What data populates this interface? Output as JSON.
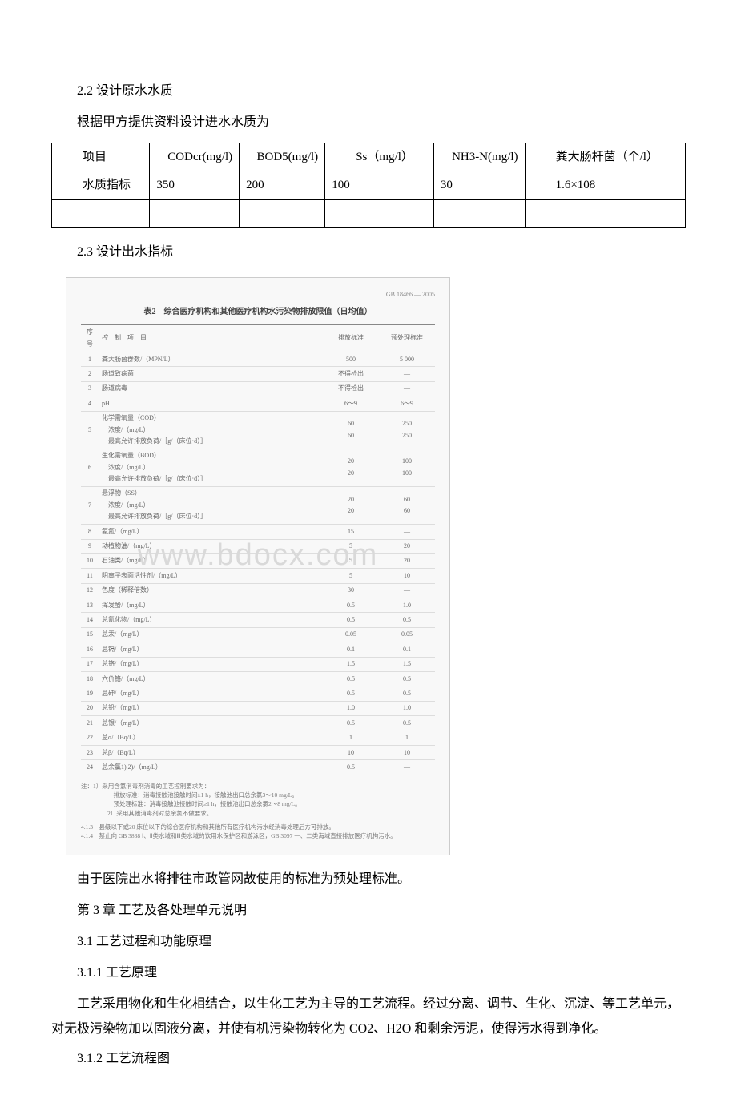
{
  "section22": {
    "heading": "2.2 设计原水水质",
    "intro": "根据甲方提供资料设计进水水质为"
  },
  "table1": {
    "headers": [
      "项目",
      "CODcr(mg/l)",
      "BOD5(mg/l)",
      "Ss（mg/l）",
      "NH3-N(mg/l)",
      "粪大肠杆菌（个/l）"
    ],
    "row_label": "水质指标",
    "values": [
      "350",
      "200",
      "100",
      "30",
      "1.6×108"
    ]
  },
  "section23": {
    "heading": "2.3 设计出水指标"
  },
  "figure": {
    "topright": "GB 18466 — 2005",
    "title": "表2　综合医疗机构和其他医疗机构水污染物排放限值（日均值）",
    "columns": [
      "序号",
      "控　制　项　目",
      "排放标准",
      "预处理标准"
    ],
    "rows": [
      {
        "n": "1",
        "item": "粪大肠菌群数/（MPN/L）",
        "a": "500",
        "b": "5 000"
      },
      {
        "n": "2",
        "item": "肠道致病菌",
        "a": "不得检出",
        "b": "—"
      },
      {
        "n": "3",
        "item": "肠道病毒",
        "a": "不得检出",
        "b": "—"
      },
      {
        "n": "4",
        "item": "pH",
        "a": "6～9",
        "b": "6～9"
      },
      {
        "n": "5",
        "item": "化学需氧量（COD）\n　浓度/（mg/L）\n　最高允许排放负荷/［g/（床位·d）］",
        "a": "60\n60",
        "b": "250\n250"
      },
      {
        "n": "6",
        "item": "生化需氧量（BOD）\n　浓度/（mg/L）\n　最高允许排放负荷/［g/（床位·d）］",
        "a": "20\n20",
        "b": "100\n100"
      },
      {
        "n": "7",
        "item": "悬浮物（SS）\n　浓度/（mg/L）\n　最高允许排放负荷/［g/（床位·d）］",
        "a": "20\n20",
        "b": "60\n60"
      },
      {
        "n": "8",
        "item": "氨氮/（mg/L）",
        "a": "15",
        "b": "—"
      },
      {
        "n": "9",
        "item": "动植物油/（mg/L）",
        "a": "5",
        "b": "20"
      },
      {
        "n": "10",
        "item": "石油类/（mg/L）",
        "a": "5",
        "b": "20"
      },
      {
        "n": "11",
        "item": "阴离子表面活性剂/（mg/L）",
        "a": "5",
        "b": "10"
      },
      {
        "n": "12",
        "item": "色度（稀释倍数）",
        "a": "30",
        "b": "—"
      },
      {
        "n": "13",
        "item": "挥发酚/（mg/L）",
        "a": "0.5",
        "b": "1.0"
      },
      {
        "n": "14",
        "item": "总氰化物/（mg/L）",
        "a": "0.5",
        "b": "0.5"
      },
      {
        "n": "15",
        "item": "总汞/（mg/L）",
        "a": "0.05",
        "b": "0.05"
      },
      {
        "n": "16",
        "item": "总镉/（mg/L）",
        "a": "0.1",
        "b": "0.1"
      },
      {
        "n": "17",
        "item": "总铬/（mg/L）",
        "a": "1.5",
        "b": "1.5"
      },
      {
        "n": "18",
        "item": "六价铬/（mg/L）",
        "a": "0.5",
        "b": "0.5"
      },
      {
        "n": "19",
        "item": "总砷/（mg/L）",
        "a": "0.5",
        "b": "0.5"
      },
      {
        "n": "20",
        "item": "总铅/（mg/L）",
        "a": "1.0",
        "b": "1.0"
      },
      {
        "n": "21",
        "item": "总银/（mg/L）",
        "a": "0.5",
        "b": "0.5"
      },
      {
        "n": "22",
        "item": "总α/（Bq/L）",
        "a": "1",
        "b": "1"
      },
      {
        "n": "23",
        "item": "总β/（Bq/L）",
        "a": "10",
        "b": "10"
      },
      {
        "n": "24",
        "item": "总余氯1),2)/（mg/L）",
        "a": "0.5",
        "b": "—"
      }
    ],
    "note1": "注：1）采用含氯消毒剂消毒的工艺控制要求为：\n　　　排放标准：消毒接触池接触时间≥1 h，接触池出口总余氯3～10 mg/L。\n　　　预处理标准：消毒接触池接触时间≥1 h，接触池出口总余氯2～8 mg/L。\n　　2）采用其他消毒剂对总余氯不做要求。",
    "note2": "4.1.3　县级以下或20 床位以下的综合医疗机构和其他所有医疗机构污水经消毒处理后方可排放。\n4.1.4　禁止向 GB 3838 Ⅰ、Ⅱ类水域和Ⅲ类水域的饮用水保护区和游泳区，GB 3097 一、二类海域直接排放医疗机构污水。"
  },
  "post_figure": "由于医院出水将排往市政管网故使用的标准为预处理标准。",
  "chapter3": "第 3 章 工艺及各处理单元说明",
  "section31": "3.1 工艺过程和功能原理",
  "section311": "3.1.1 工艺原理",
  "para311": "工艺采用物化和生化相结合，以生化工艺为主导的工艺流程。经过分离、调节、生化、沉淀、等工艺单元，对无极污染物加以固液分离，并使有机污染物转化为 CO2、H2O 和剩余污泥，使得污水得到净化。",
  "section312": "3.1.2 工艺流程图",
  "watermark": "www.bdocx.com"
}
